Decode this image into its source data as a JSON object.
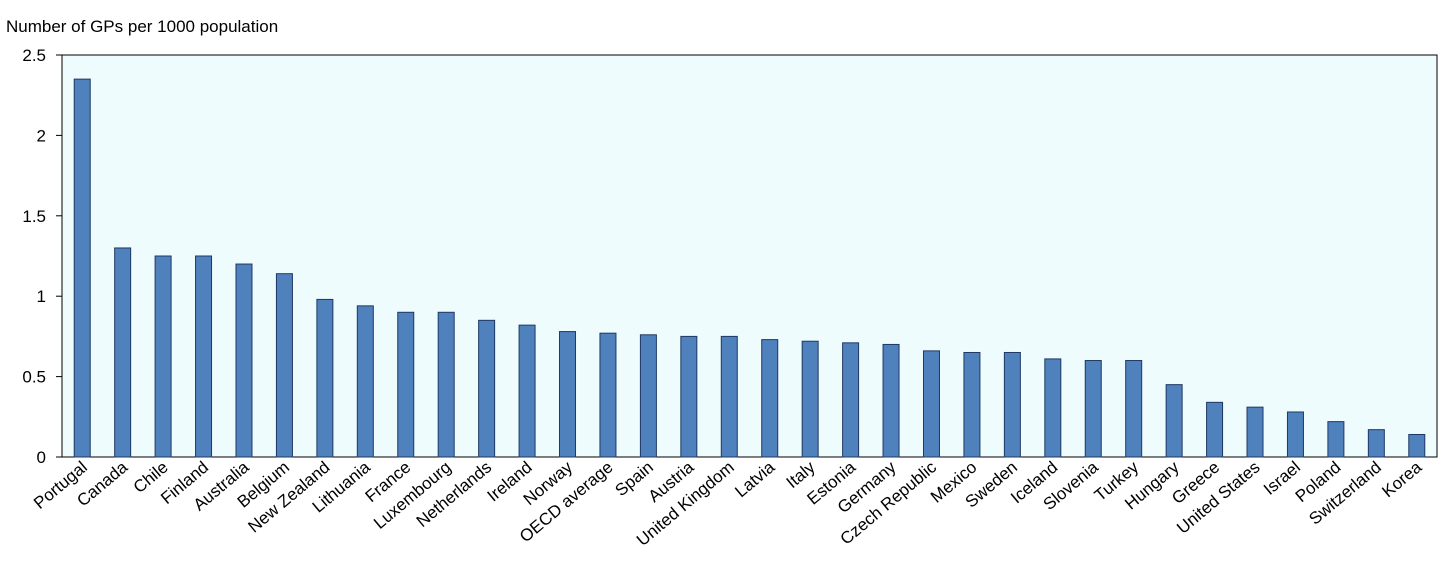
{
  "chart_data": {
    "type": "bar",
    "y_label": "Number of GPs per 1000 population",
    "categories": [
      "Portugal",
      "Canada",
      "Chile",
      "Finland",
      "Australia",
      "Belgium",
      "New Zealand",
      "Lithuania",
      "France",
      "Luxembourg",
      "Netherlands",
      "Ireland",
      "Norway",
      "OECD average",
      "Spain",
      "Austria",
      "United Kingdom",
      "Latvia",
      "Italy",
      "Estonia",
      "Germany",
      "Czech Republic",
      "Mexico",
      "Sweden",
      "Iceland",
      "Slovenia",
      "Turkey",
      "Hungary",
      "Greece",
      "United States",
      "Israel",
      "Poland",
      "Switzerland",
      "Korea"
    ],
    "values": [
      2.35,
      1.3,
      1.25,
      1.25,
      1.2,
      1.14,
      0.98,
      0.94,
      0.9,
      0.9,
      0.85,
      0.82,
      0.78,
      0.77,
      0.76,
      0.75,
      0.75,
      0.73,
      0.72,
      0.71,
      0.7,
      0.66,
      0.65,
      0.65,
      0.61,
      0.6,
      0.6,
      0.45,
      0.34,
      0.31,
      0.28,
      0.22,
      0.17,
      0.14
    ],
    "color": "#4f81bd",
    "ylim": [
      0,
      2.5
    ],
    "yticks": [
      0,
      0.5,
      1,
      1.5,
      2,
      2.5
    ],
    "grid": false
  }
}
